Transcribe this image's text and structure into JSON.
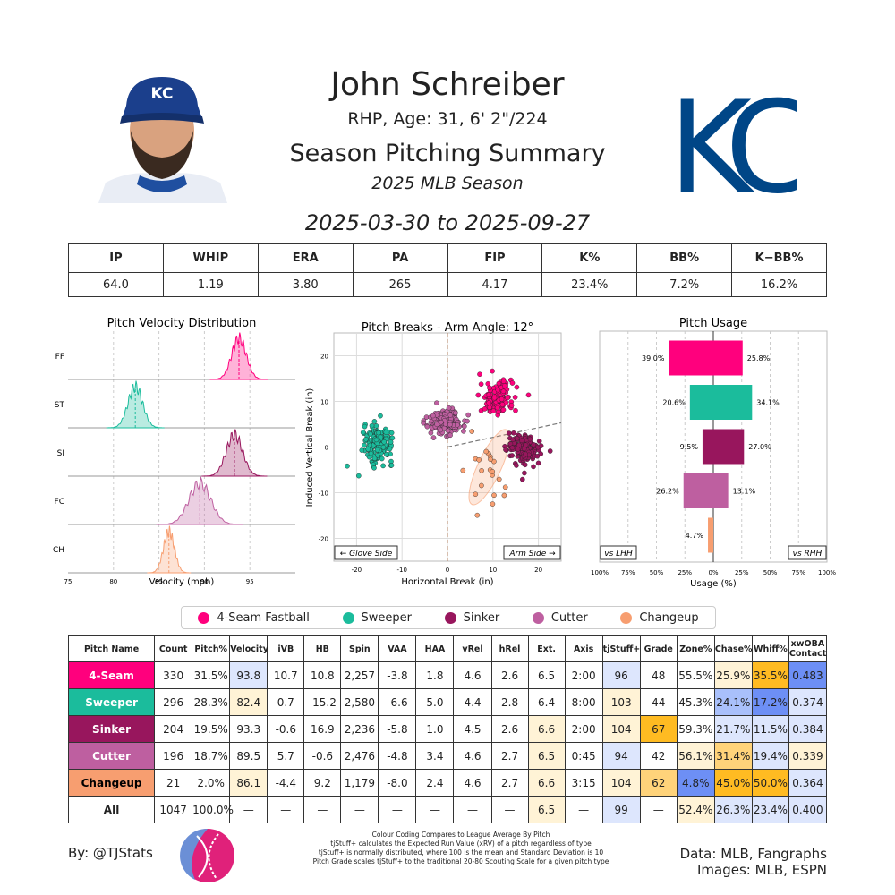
{
  "header": {
    "name": "John Schreiber",
    "info": "RHP, Age: 31, 6' 2\"/224",
    "title": "Season Pitching Summary",
    "season": "2025 MLB Season",
    "date_range": "2025-03-30 to 2025-09-27",
    "team_logo_text": "KC"
  },
  "colors": {
    "FF": "#ff007d",
    "ST": "#1bbc9c",
    "SI": "#98165d",
    "FC": "#be5fa0",
    "CH": "#f79e70",
    "hi_strong": "#ffbb22",
    "hi_mid": "#ffd37a",
    "hi_light": "#fff3d6",
    "lo_strong": "#6d8ff5",
    "lo_mid": "#a9c0fb",
    "lo_light": "#dde6fd"
  },
  "stats": {
    "headers": [
      "IP",
      "WHIP",
      "ERA",
      "PA",
      "FIP",
      "K%",
      "BB%",
      "K−BB%"
    ],
    "values": [
      "64.0",
      "1.19",
      "3.80",
      "265",
      "4.17",
      "23.4%",
      "7.2%",
      "16.2%"
    ]
  },
  "chart_data": [
    {
      "type": "area",
      "title": "Pitch Velocity Distribution",
      "xlabel": "Velocity (mph)",
      "xlim": [
        75,
        100
      ],
      "xticks": [
        "75",
        "80",
        "85",
        "90",
        "95"
      ],
      "series": [
        {
          "name": "FF",
          "mean": 93.8,
          "sd": 0.8
        },
        {
          "name": "ST",
          "mean": 82.4,
          "sd": 0.8
        },
        {
          "name": "SI",
          "mean": 93.3,
          "sd": 0.9
        },
        {
          "name": "FC",
          "mean": 89.5,
          "sd": 1.2
        },
        {
          "name": "CH",
          "mean": 86.1,
          "sd": 0.6
        }
      ]
    },
    {
      "type": "scatter",
      "title": "Pitch Breaks - Arm Angle: 12°",
      "xlabel": "Horizontal Break (in)",
      "ylabel": "Induced Vertical Break (in)",
      "xlim": [
        -25,
        25
      ],
      "ylim": [
        -25,
        25
      ],
      "xticks": [
        "-20",
        "-10",
        "0",
        "10",
        "20"
      ],
      "yticks": [
        "20",
        "10",
        "0",
        "-10",
        "-20"
      ],
      "glove_side": "← Glove Side",
      "arm_side": "Arm Side →",
      "arm_angle_deg": 12,
      "series": [
        {
          "name": "FF",
          "hb": 10.8,
          "ivb": 10.7,
          "count": 330
        },
        {
          "name": "ST",
          "hb": -15.2,
          "ivb": 0.7,
          "count": 296
        },
        {
          "name": "SI",
          "hb": 16.9,
          "ivb": -0.6,
          "count": 204
        },
        {
          "name": "FC",
          "hb": -0.6,
          "ivb": 5.7,
          "count": 196
        },
        {
          "name": "CH",
          "hb": 9.2,
          "ivb": -4.4,
          "count": 21
        }
      ]
    },
    {
      "type": "bar",
      "title": "Pitch Usage",
      "xlabel": "Usage (%)",
      "xticks": [
        "100%",
        "75%",
        "50%",
        "25%",
        "0%",
        "25%",
        "50%",
        "75%",
        "100%"
      ],
      "vs_lhh": "vs LHH",
      "vs_rhh": "vs RHH",
      "categories": [
        "FF",
        "ST",
        "SI",
        "FC",
        "CH"
      ],
      "lhh": [
        39.0,
        20.6,
        9.5,
        26.2,
        4.7
      ],
      "rhh": [
        25.8,
        34.1,
        27.0,
        13.1,
        0
      ],
      "lhh_labels": [
        "39.0%",
        "20.6%",
        "9.5%",
        "26.2%",
        "4.7%"
      ],
      "rhh_labels": [
        "25.8%",
        "34.1%",
        "27.0%",
        "13.1%",
        ""
      ]
    }
  ],
  "legend": [
    {
      "code": "FF",
      "label": "4-Seam Fastball"
    },
    {
      "code": "ST",
      "label": "Sweeper"
    },
    {
      "code": "SI",
      "label": "Sinker"
    },
    {
      "code": "FC",
      "label": "Cutter"
    },
    {
      "code": "CH",
      "label": "Changeup"
    }
  ],
  "pitch_table": {
    "headers": [
      "Pitch Name",
      "Count",
      "Pitch%",
      "Velocity",
      "iVB",
      "HB",
      "Spin",
      "VAA",
      "HAA",
      "vRel",
      "hRel",
      "Ext.",
      "Axis",
      "tjStuff+",
      "Grade",
      "Zone%",
      "Chase%",
      "Whiff%",
      "xwOBA Contact"
    ],
    "rows": [
      {
        "code": "FF",
        "cells": [
          "4-Seam",
          "330",
          "31.5%",
          "93.8",
          "10.7",
          "10.8",
          "2,257",
          "-3.8",
          "1.8",
          "4.6",
          "2.6",
          "6.5",
          "2:00",
          "96",
          "48",
          "55.5%",
          "25.9%",
          "35.5%",
          "0.483"
        ],
        "shade": {
          "3": "lo_light",
          "13": "lo_light",
          "16": "hi_light",
          "17": "hi_strong",
          "18": "lo_strong"
        }
      },
      {
        "code": "ST",
        "cells": [
          "Sweeper",
          "296",
          "28.3%",
          "82.4",
          "0.7",
          "-15.2",
          "2,580",
          "-6.6",
          "5.0",
          "4.4",
          "2.8",
          "6.4",
          "8:00",
          "103",
          "44",
          "45.3%",
          "24.1%",
          "17.2%",
          "0.374"
        ],
        "shade": {
          "3": "hi_light",
          "13": "hi_light",
          "16": "lo_mid",
          "17": "lo_strong",
          "18": "lo_light"
        }
      },
      {
        "code": "SI",
        "cells": [
          "Sinker",
          "204",
          "19.5%",
          "93.3",
          "-0.6",
          "16.9",
          "2,236",
          "-5.8",
          "1.0",
          "4.5",
          "2.6",
          "6.6",
          "2:00",
          "104",
          "67",
          "59.3%",
          "21.7%",
          "11.5%",
          "0.384"
        ],
        "shade": {
          "11": "hi_light",
          "13": "hi_light",
          "14": "hi_strong",
          "16": "lo_light",
          "17": "lo_light",
          "18": "lo_light"
        }
      },
      {
        "code": "FC",
        "cells": [
          "Cutter",
          "196",
          "18.7%",
          "89.5",
          "5.7",
          "-0.6",
          "2,476",
          "-4.8",
          "3.4",
          "4.6",
          "2.7",
          "6.5",
          "0:45",
          "94",
          "42",
          "56.1%",
          "31.4%",
          "19.4%",
          "0.339"
        ],
        "shade": {
          "11": "hi_light",
          "13": "lo_light",
          "15": "hi_light",
          "16": "hi_mid",
          "17": "lo_light",
          "18": "hi_light"
        }
      },
      {
        "code": "CH",
        "cells": [
          "Changeup",
          "21",
          "2.0%",
          "86.1",
          "-4.4",
          "9.2",
          "1,179",
          "-8.0",
          "2.4",
          "4.6",
          "2.7",
          "6.6",
          "3:15",
          "104",
          "62",
          "4.8%",
          "45.0%",
          "50.0%",
          "0.364"
        ],
        "shade": {
          "3": "hi_light",
          "11": "hi_light",
          "13": "hi_light",
          "14": "hi_mid",
          "15": "lo_strong",
          "16": "hi_strong",
          "17": "hi_strong",
          "18": "lo_light"
        }
      },
      {
        "code": "ALL",
        "cells": [
          "All",
          "1047",
          "100.0%",
          "—",
          "—",
          "—",
          "—",
          "—",
          "—",
          "—",
          "—",
          "6.5",
          "—",
          "99",
          "—",
          "52.4%",
          "26.3%",
          "23.4%",
          "0.400"
        ],
        "shade": {
          "11": "hi_light",
          "13": "lo_light",
          "15": "hi_light",
          "16": "lo_light",
          "17": "lo_light",
          "18": "lo_light"
        }
      }
    ]
  },
  "footer": {
    "byline": "By: @TJStats",
    "notes": [
      "Colour Coding Compares to League Average By Pitch",
      "tjStuff+ calculates the Expected Run Value (xRV) of a pitch regardless of type",
      "tjStuff+ is normally distributed, where 100 is the mean and Standard Deviation is 10",
      "Pitch Grade scales tjStuff+ to the traditional 20-80 Scouting Scale for a given pitch type"
    ],
    "data_source": "Data: MLB, Fangraphs",
    "images_source": "Images: MLB, ESPN"
  }
}
